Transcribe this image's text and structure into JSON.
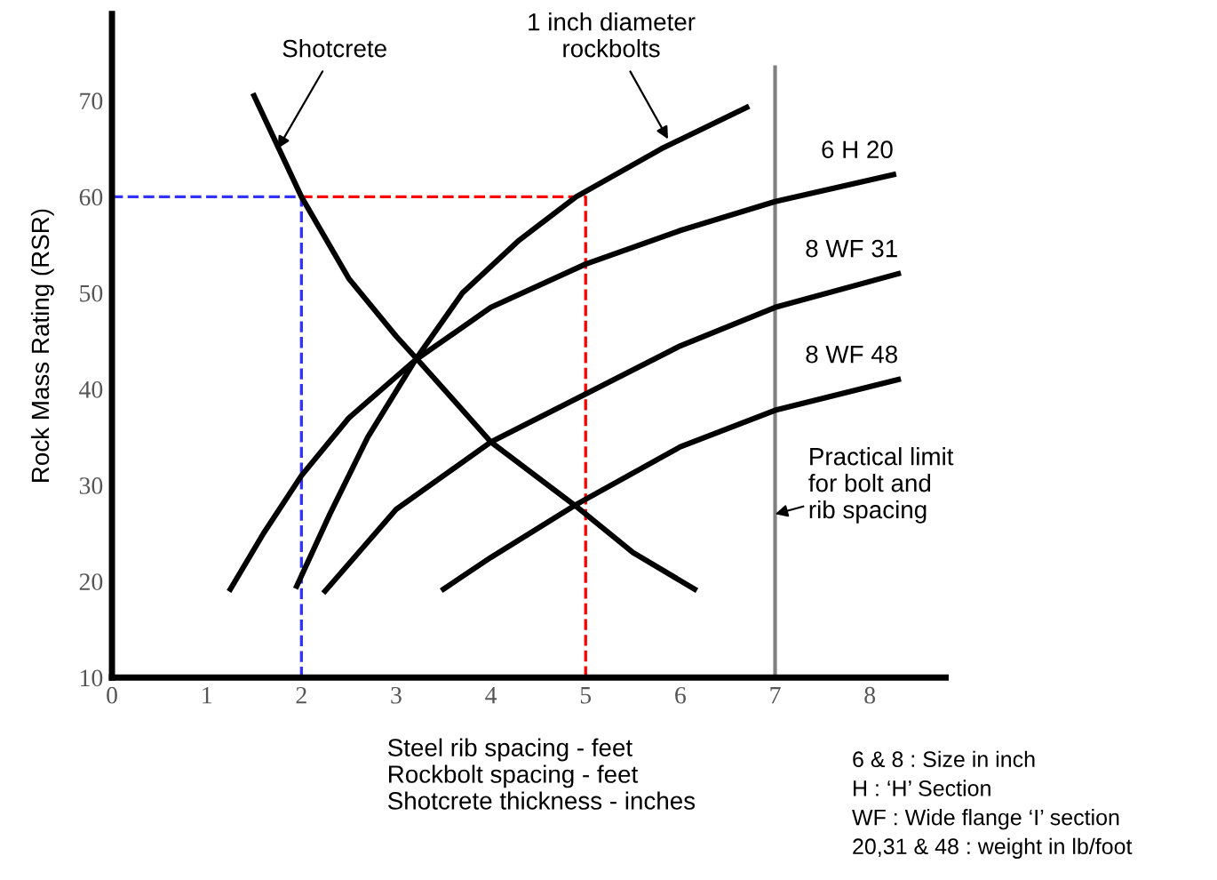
{
  "chart_data": {
    "type": "line",
    "xlabel": "Steel rib spacing - feet\nRockbolt spacing - feet\nShotcrete thickness - inches",
    "ylabel": "Rock Mass Rating (RSR)",
    "xlim": [
      0,
      8.8
    ],
    "ylim": [
      10,
      79
    ],
    "xticks": [
      0,
      1,
      2,
      3,
      4,
      5,
      6,
      7,
      8
    ],
    "yticks": [
      10,
      20,
      30,
      40,
      50,
      60,
      70
    ],
    "grid": false,
    "legend": false,
    "marker": "none",
    "series": [
      {
        "color": "#000000",
        "x": [
          1.5,
          2,
          2.5,
          3,
          3.25,
          4,
          4.9,
          5.5,
          6.15
        ],
        "values": [
          70.5,
          60,
          51.5,
          45.5,
          42.8,
          34.5,
          27.8,
          23,
          19.2
        ]
      },
      {
        "color": "#000000",
        "x": [
          1.95,
          2.3,
          2.7,
          3.2,
          3.7,
          4.3,
          4.9,
          5.8,
          6.7
        ],
        "values": [
          19.5,
          27,
          35,
          43,
          50,
          55.5,
          60,
          65,
          69.3
        ]
      },
      {
        "name": "6 H 20",
        "color": "#000000",
        "x": [
          1.25,
          1.6,
          2,
          2.5,
          3.2,
          4,
          5,
          6,
          7,
          8.25
        ],
        "values": [
          19.2,
          25,
          31,
          37,
          43,
          48.5,
          53,
          56.5,
          59.5,
          62.3
        ]
      },
      {
        "name": "8 WF 31",
        "color": "#000000",
        "x": [
          2.25,
          3,
          4,
          5,
          6,
          7,
          8.3
        ],
        "values": [
          19,
          27.5,
          34.5,
          39.5,
          44.5,
          48.5,
          52
        ]
      },
      {
        "name": "8 WF 48",
        "color": "#000000",
        "x": [
          3.5,
          4,
          4.9,
          6,
          7,
          8.3
        ],
        "values": [
          19.2,
          22.5,
          28,
          34,
          37.8,
          41
        ]
      },
      {
        "color": "#3333ff",
        "line_style": "dashed",
        "x": [
          0,
          2,
          2
        ],
        "values": [
          60,
          60,
          10
        ]
      },
      {
        "color": "#ff0000",
        "line_style": "dashed",
        "x": [
          2,
          5,
          5
        ],
        "values": [
          60,
          60,
          10
        ]
      }
    ],
    "ref_lines": [
      {
        "axis": "x",
        "value": 7,
        "label": "Practical limit\nfor bolt and\nrib spacing",
        "color": "#808080"
      }
    ],
    "annotations": [
      {
        "text": "Shotcrete",
        "x": 1.75,
        "y": 65
      },
      {
        "text": "1 inch diameter\nrockbolts",
        "x": 5.87,
        "y": 66
      },
      "6 & 8 : Size in inch",
      "H : ‘H’ Section",
      "WF : Wide flange ‘I’ section",
      "20,31 & 48 : weight in lb/foot"
    ]
  }
}
